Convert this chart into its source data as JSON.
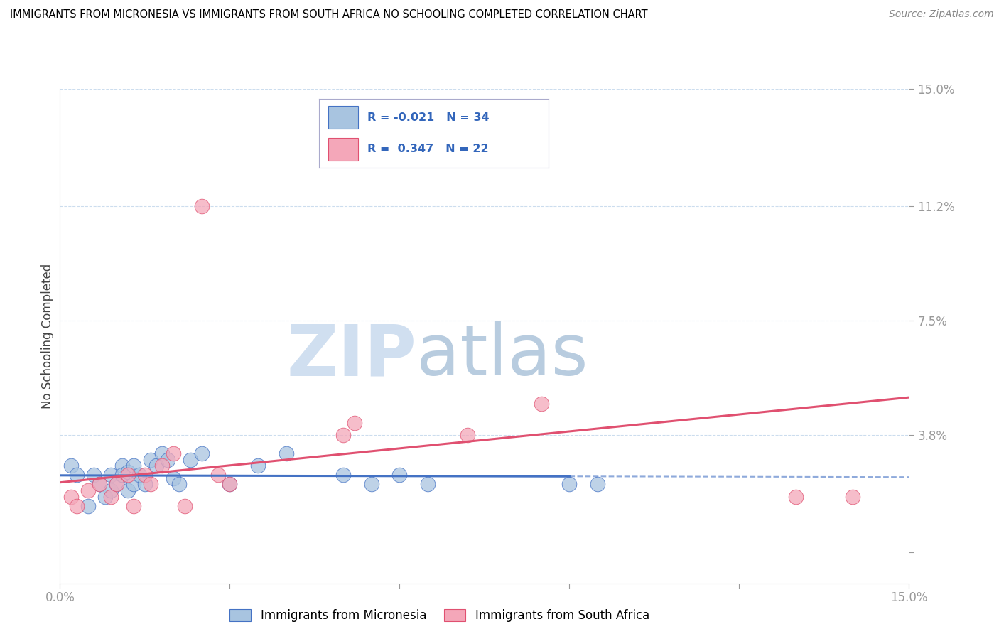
{
  "title": "IMMIGRANTS FROM MICRONESIA VS IMMIGRANTS FROM SOUTH AFRICA NO SCHOOLING COMPLETED CORRELATION CHART",
  "source": "Source: ZipAtlas.com",
  "ylabel": "No Schooling Completed",
  "xlim": [
    0.0,
    0.15
  ],
  "ylim": [
    -0.01,
    0.15
  ],
  "yticks": [
    0.0,
    0.038,
    0.075,
    0.112,
    0.15
  ],
  "ytick_labels": [
    "",
    "3.8%",
    "7.5%",
    "11.2%",
    "15.0%"
  ],
  "xticks": [
    0.0,
    0.03,
    0.06,
    0.09,
    0.12,
    0.15
  ],
  "xtick_labels": [
    "0.0%",
    "",
    "",
    "",
    "",
    "15.0%"
  ],
  "micronesia_R": -0.021,
  "micronesia_N": 34,
  "southafrica_R": 0.347,
  "southafrica_N": 22,
  "micronesia_color": "#a8c4e0",
  "southafrica_color": "#f4a7b9",
  "micronesia_line_color": "#4472c4",
  "southafrica_line_color": "#e05070",
  "legend_box_color": "#aaaacc",
  "text_color": "#3366bb",
  "micronesia_x": [
    0.002,
    0.003,
    0.005,
    0.006,
    0.007,
    0.008,
    0.009,
    0.009,
    0.01,
    0.011,
    0.011,
    0.012,
    0.012,
    0.013,
    0.013,
    0.014,
    0.015,
    0.016,
    0.017,
    0.018,
    0.019,
    0.02,
    0.021,
    0.023,
    0.025,
    0.03,
    0.035,
    0.04,
    0.05,
    0.055,
    0.06,
    0.065,
    0.09,
    0.095
  ],
  "micronesia_y": [
    0.028,
    0.025,
    0.015,
    0.025,
    0.022,
    0.018,
    0.025,
    0.02,
    0.022,
    0.028,
    0.025,
    0.02,
    0.026,
    0.022,
    0.028,
    0.025,
    0.022,
    0.03,
    0.028,
    0.032,
    0.03,
    0.024,
    0.022,
    0.03,
    0.032,
    0.022,
    0.028,
    0.032,
    0.025,
    0.022,
    0.025,
    0.022,
    0.022,
    0.022
  ],
  "southafrica_x": [
    0.002,
    0.003,
    0.005,
    0.007,
    0.009,
    0.01,
    0.012,
    0.013,
    0.015,
    0.016,
    0.018,
    0.02,
    0.022,
    0.025,
    0.028,
    0.03,
    0.05,
    0.052,
    0.072,
    0.085,
    0.13,
    0.14
  ],
  "southafrica_y": [
    0.018,
    0.015,
    0.02,
    0.022,
    0.018,
    0.022,
    0.025,
    0.015,
    0.025,
    0.022,
    0.028,
    0.032,
    0.015,
    0.112,
    0.025,
    0.022,
    0.038,
    0.042,
    0.038,
    0.048,
    0.018,
    0.018
  ],
  "mic_line_x_solid_end": 0.09,
  "mic_line_x_dashed_start": 0.09
}
